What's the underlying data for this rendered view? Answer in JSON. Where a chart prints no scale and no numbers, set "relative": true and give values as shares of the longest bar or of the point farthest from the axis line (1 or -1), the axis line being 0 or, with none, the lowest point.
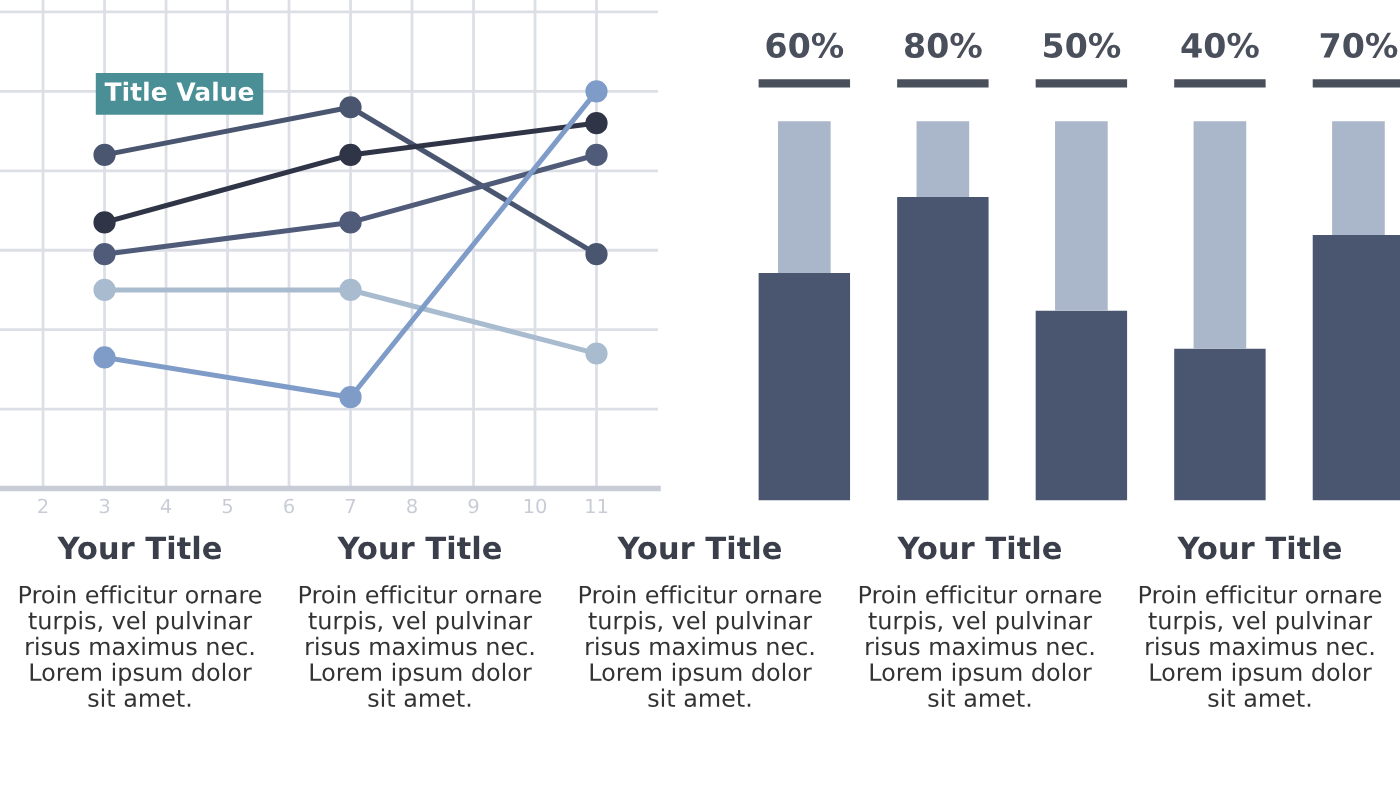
{
  "chart_data": [
    {
      "type": "line",
      "relative": true,
      "x": [
        3,
        7,
        11
      ],
      "xlim": [
        1.3,
        12
      ],
      "xticks": [
        2,
        3,
        4,
        5,
        6,
        7,
        8,
        9,
        10,
        11
      ],
      "tick_labels": "x",
      "grid": true,
      "marker": "circle",
      "line_style": "solid",
      "series": [
        {
          "color": "#4a5670",
          "values": [
            0.84,
            0.96,
            0.59
          ]
        },
        {
          "color": "#2f3547",
          "values": [
            0.67,
            0.84,
            0.92
          ]
        },
        {
          "color": "#4f5b78",
          "values": [
            0.59,
            0.67,
            0.84
          ]
        },
        {
          "color": "#a9bccf",
          "values": [
            0.5,
            0.5,
            0.34
          ]
        },
        {
          "color": "#7f9cc9",
          "values": [
            0.33,
            0.23,
            1.0
          ]
        }
      ],
      "annotations": [
        {
          "text": "Title Value",
          "x": 3,
          "y": 0.84
        }
      ]
    },
    {
      "type": "bar",
      "stacked": true,
      "categories": [
        null,
        null,
        null,
        null,
        null
      ],
      "tick_labels": false,
      "ylim": [
        0,
        100
      ],
      "series": [
        {
          "color": "#4a5670",
          "values": [
            60,
            80,
            50,
            40,
            70
          ],
          "value_labels": [
            "60%",
            "80%",
            "50%",
            "40%",
            "70%"
          ]
        },
        {
          "color": "#aab6ca",
          "values": [
            40,
            20,
            50,
            60,
            30
          ]
        }
      ]
    },
    {
      "type": "other",
      "annotations": [
        "Your Title",
        "Proin efficitur ornare\nturpis, vel pulvinar\nrisus maximus nec.\nLorem ipsum dolor\nsit amet.",
        "Your Title",
        "Proin efficitur ornare\nturpis, vel pulvinar\nrisus maximus nec.\nLorem ipsum dolor\nsit amet.",
        "Your Title",
        "Proin efficitur ornare\nturpis, vel pulvinar\nrisus maximus nec.\nLorem ipsum dolor\nsit amet.",
        "Your Title",
        "Proin efficitur ornare\nturpis, vel pulvinar\nrisus maximus nec.\nLorem ipsum dolor\nsit amet.",
        "Your Title",
        "Proin efficitur ornare\nturpis, vel pulvinar\nrisus maximus nec.\nLorem ipsum dolor\nsit amet."
      ]
    }
  ]
}
